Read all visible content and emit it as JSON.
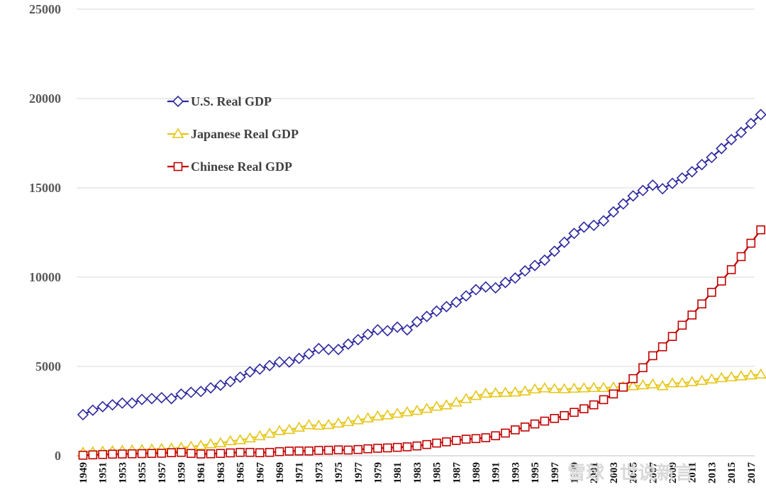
{
  "chart_data": {
    "type": "line",
    "title": "",
    "xlabel": "",
    "ylabel": "",
    "ylim": [
      0,
      25000
    ],
    "yticks": [
      0,
      5000,
      10000,
      15000,
      20000,
      25000
    ],
    "ytick_labels": [
      "0",
      "5000",
      "10000",
      "15000",
      "20000",
      "25000"
    ],
    "grid": true,
    "legend_position": "upper-left",
    "x_start": 1949,
    "x_end": 2018,
    "xtick_step": 2,
    "xtick_labels": [
      "1949",
      "1951",
      "1953",
      "1955",
      "1957",
      "1959",
      "1961",
      "1963",
      "1965",
      "1967",
      "1969",
      "1971",
      "1973",
      "1975",
      "1977",
      "1979",
      "1981",
      "1983",
      "1985",
      "1987",
      "1989",
      "1991",
      "1993",
      "1995",
      "1997",
      "1999",
      "2001",
      "2003",
      "2005",
      "2007",
      "2009",
      "2011",
      "2013",
      "2015",
      "2017"
    ],
    "series": [
      {
        "name": "U.S. Real GDP",
        "color": "#2e2a9e",
        "marker": "diamond",
        "values": [
          2300,
          2550,
          2750,
          2850,
          2950,
          2950,
          3150,
          3200,
          3250,
          3200,
          3450,
          3550,
          3600,
          3800,
          3950,
          4150,
          4400,
          4700,
          4850,
          5050,
          5250,
          5250,
          5450,
          5700,
          6000,
          5950,
          5950,
          6250,
          6500,
          6800,
          7050,
          7000,
          7200,
          7050,
          7500,
          7800,
          8100,
          8350,
          8600,
          8950,
          9300,
          9450,
          9400,
          9700,
          9950,
          10350,
          10650,
          10950,
          11450,
          11950,
          12450,
          12800,
          12900,
          13150,
          13650,
          14100,
          14550,
          14850,
          15150,
          14950,
          15250,
          15550,
          15900,
          16300,
          16700,
          17200,
          17700,
          18100,
          18600,
          19100
        ]
      },
      {
        "name": "Japanese Real GDP",
        "color": "#e6c619",
        "marker": "triangle",
        "values": [
          180,
          200,
          230,
          260,
          280,
          300,
          330,
          360,
          390,
          410,
          450,
          510,
          570,
          650,
          710,
          820,
          880,
          980,
          1100,
          1240,
          1390,
          1450,
          1580,
          1720,
          1690,
          1730,
          1810,
          1890,
          1990,
          2100,
          2210,
          2270,
          2360,
          2440,
          2520,
          2630,
          2750,
          2830,
          2990,
          3180,
          3350,
          3480,
          3510,
          3530,
          3550,
          3610,
          3720,
          3780,
          3740,
          3730,
          3760,
          3780,
          3800,
          3800,
          3830,
          3860,
          3900,
          3950,
          4000,
          3900,
          4060,
          4070,
          4130,
          4200,
          4280,
          4350,
          4400,
          4450,
          4500,
          4550
        ]
      },
      {
        "name": "Chinese Real GDP",
        "color": "#c00000",
        "marker": "square",
        "values": [
          30,
          50,
          70,
          90,
          100,
          110,
          120,
          130,
          140,
          170,
          190,
          130,
          100,
          110,
          130,
          160,
          190,
          190,
          170,
          190,
          230,
          260,
          270,
          270,
          300,
          310,
          330,
          320,
          350,
          390,
          420,
          440,
          470,
          500,
          550,
          630,
          710,
          780,
          860,
          930,
          960,
          1010,
          1120,
          1270,
          1450,
          1610,
          1780,
          1940,
          2090,
          2250,
          2430,
          2630,
          2850,
          3140,
          3460,
          3840,
          4320,
          4930,
          5600,
          6100,
          6680,
          7310,
          7880,
          8500,
          9150,
          9780,
          10420,
          11150,
          11900,
          12650
        ]
      }
    ]
  },
  "watermark": "雪球 · 世说新言"
}
